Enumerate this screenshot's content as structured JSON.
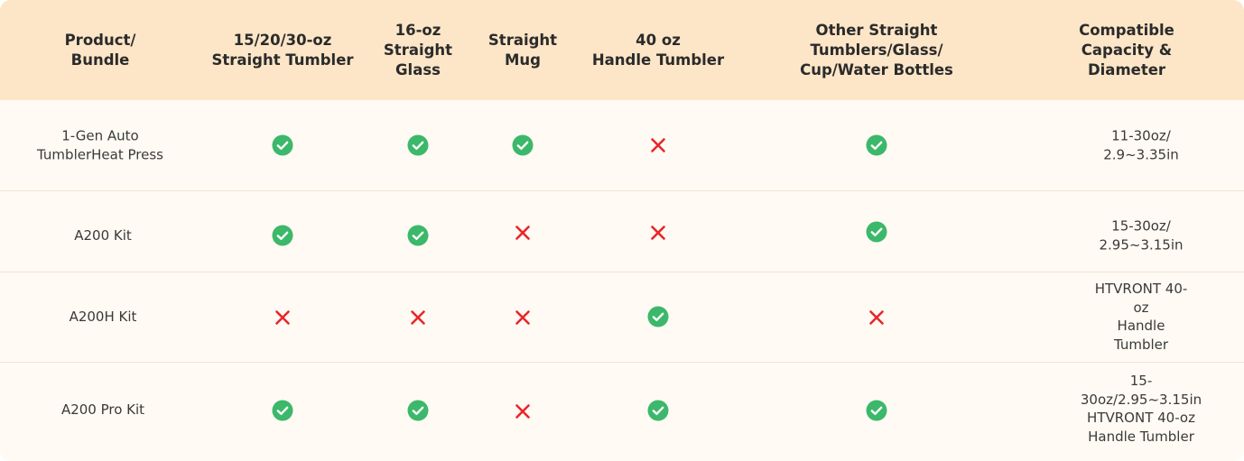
{
  "table": {
    "headers": [
      "Product/\nBundle",
      "15/20/30-oz\nStraight Tumbler",
      "16-oz\nStraight\nGlass",
      "Straight\nMug",
      "40 oz\nHandle Tumbler",
      "Other Straight\nTumblers/Glass/\nCup/Water Bottles",
      "Compatible Capacity &\nDiameter"
    ],
    "rows": [
      {
        "product": "1-Gen Auto\nTumblerHeat Press",
        "marks": [
          "check-icon",
          "check-icon",
          "check-icon",
          "cross-icon",
          "check-icon"
        ],
        "capacity": "11-30oz/\n2.9~3.35in"
      },
      {
        "product": "A200 Kit",
        "marks": [
          "check-icon",
          "check-icon",
          "cross-icon",
          "cross-icon",
          "check-icon"
        ],
        "capacity": "15-30oz/\n2.95~3.15in"
      },
      {
        "product": "A200H Kit",
        "marks": [
          "cross-icon",
          "cross-icon",
          "cross-icon",
          "check-icon",
          "cross-icon"
        ],
        "capacity": "HTVRONT 40-oz\nHandle Tumbler"
      },
      {
        "product": "A200 Pro Kit",
        "marks": [
          "check-icon",
          "check-icon",
          "cross-icon",
          "check-icon",
          "check-icon"
        ],
        "capacity": "15-30oz/2.95~3.15in\nHTVRONT 40-oz\nHandle Tumbler"
      }
    ]
  },
  "colors": {
    "header_bg": "#fde6c7",
    "body_bg": "#fffaf3",
    "check_green": "#3cb86a",
    "cross_red": "#e8262b"
  }
}
